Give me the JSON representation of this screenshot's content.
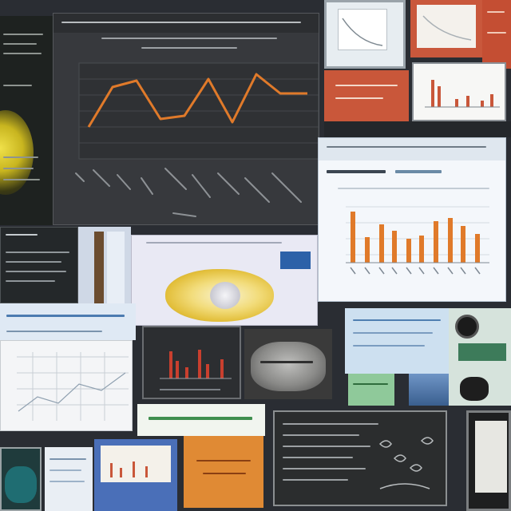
{
  "collage": {
    "palette": {
      "background": "#2a2d33",
      "chart_bg_dark": "#3a3d42",
      "accent_orange": "#e07a2a",
      "accent_red": "#c9533a",
      "panel_light": "#eef3f8",
      "panel_blue": "#cfe0ef",
      "panel_green": "#8fc99a",
      "yellow_glow": "#e6d12a"
    },
    "icons": [
      "chart-line-icon",
      "bar-chart-icon",
      "grid-icon",
      "camera-icon",
      "lens-icon"
    ]
  }
}
